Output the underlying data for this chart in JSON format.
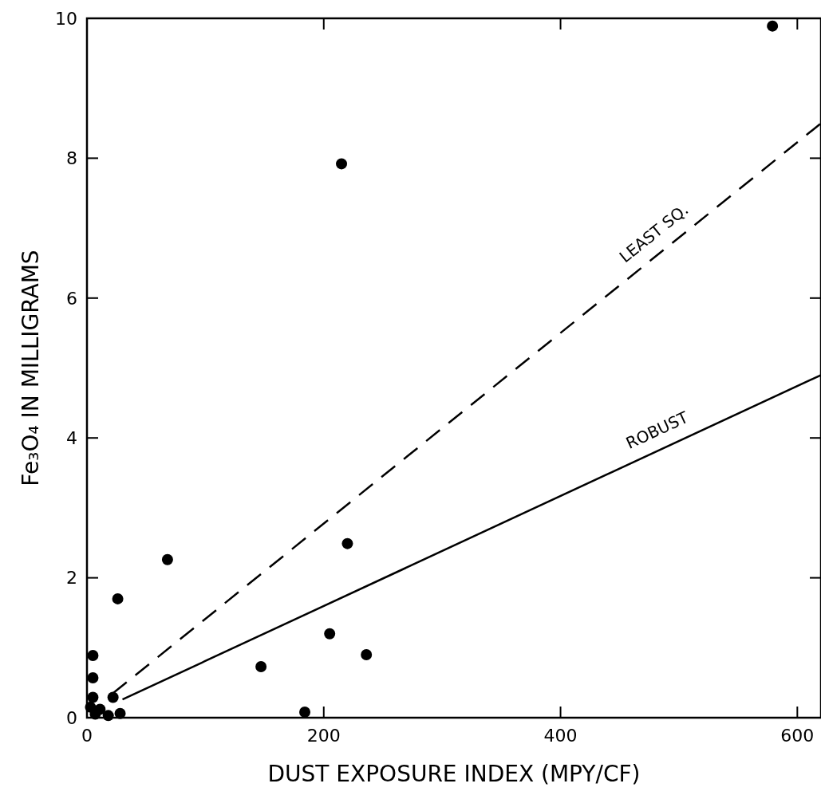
{
  "chart_data": {
    "type": "scatter",
    "xlabel": "DUST EXPOSURE INDEX (MPY/CF)",
    "ylabel": "Fe₃O₄ IN MILLIGRAMS",
    "xlim": [
      0,
      620
    ],
    "ylim": [
      0,
      10
    ],
    "xticks": [
      0,
      200,
      400,
      600
    ],
    "yticks": [
      0,
      2,
      4,
      6,
      8,
      10
    ],
    "grid": false,
    "legend": false,
    "marker": "circle",
    "series": [
      {
        "color": "#000000",
        "x": [
          5,
          5,
          5,
          22,
          3,
          11,
          7,
          18,
          28,
          26,
          68,
          147,
          184,
          205,
          236,
          220,
          215,
          579
        ],
        "values": [
          0.89,
          0.57,
          0.29,
          0.29,
          0.15,
          0.12,
          0.05,
          0.03,
          0.06,
          1.7,
          2.26,
          0.73,
          0.08,
          1.2,
          0.9,
          2.49,
          7.92,
          9.89
        ]
      },
      {
        "type": "line",
        "name": "LEAST SQ.",
        "color": "#000000",
        "line_style": "dashed",
        "marker": "none",
        "x": [
          22,
          620
        ],
        "values": [
          0.35,
          8.5
        ]
      },
      {
        "type": "line",
        "name": "ROBUST",
        "color": "#000000",
        "line_style": "solid",
        "marker": "none",
        "x": [
          30,
          620
        ],
        "values": [
          0.26,
          4.9
        ]
      }
    ]
  }
}
